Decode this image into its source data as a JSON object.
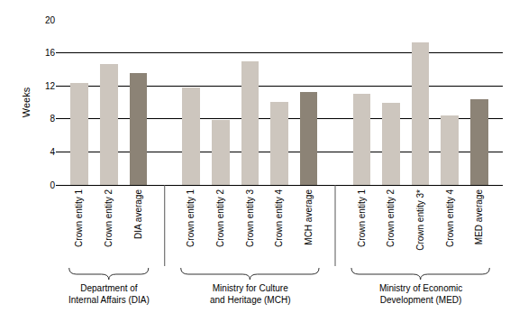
{
  "chart_data": {
    "type": "bar",
    "y_label": "Weeks",
    "ylim": [
      0,
      20
    ],
    "yticks": [
      0,
      4,
      8,
      12,
      16,
      20
    ],
    "grid": true,
    "groups": [
      {
        "label": [
          "Department of",
          "Internal Affairs (DIA)"
        ],
        "categories": [
          "Crown entity 1",
          "Crown entity 2",
          "DIA average"
        ],
        "values": [
          12.3,
          14.6,
          13.5
        ],
        "colors": [
          "#cdc6be",
          "#cdc6be",
          "#8c8376"
        ]
      },
      {
        "label": [
          "Ministry for Culture",
          "and Heritage (MCH)"
        ],
        "categories": [
          "Crown entity 1",
          "Crown entity 2",
          "Crown entity 3",
          "Crown entity 4",
          "MCH average"
        ],
        "values": [
          11.8,
          7.9,
          15.0,
          10.1,
          11.3
        ],
        "colors": [
          "#cdc6be",
          "#cdc6be",
          "#cdc6be",
          "#cdc6be",
          "#8c8376"
        ]
      },
      {
        "label": [
          "Ministry of Economic",
          "Development (MED)"
        ],
        "categories": [
          "Crown entity 1",
          "Crown entity 2",
          "Crown entity 3*",
          "Crown entity 4",
          "MED average"
        ],
        "values": [
          11.0,
          9.9,
          17.3,
          8.4,
          10.4
        ],
        "colors": [
          "#cdc6be",
          "#cdc6be",
          "#cdc6be",
          "#cdc6be",
          "#8c8376"
        ]
      }
    ]
  }
}
